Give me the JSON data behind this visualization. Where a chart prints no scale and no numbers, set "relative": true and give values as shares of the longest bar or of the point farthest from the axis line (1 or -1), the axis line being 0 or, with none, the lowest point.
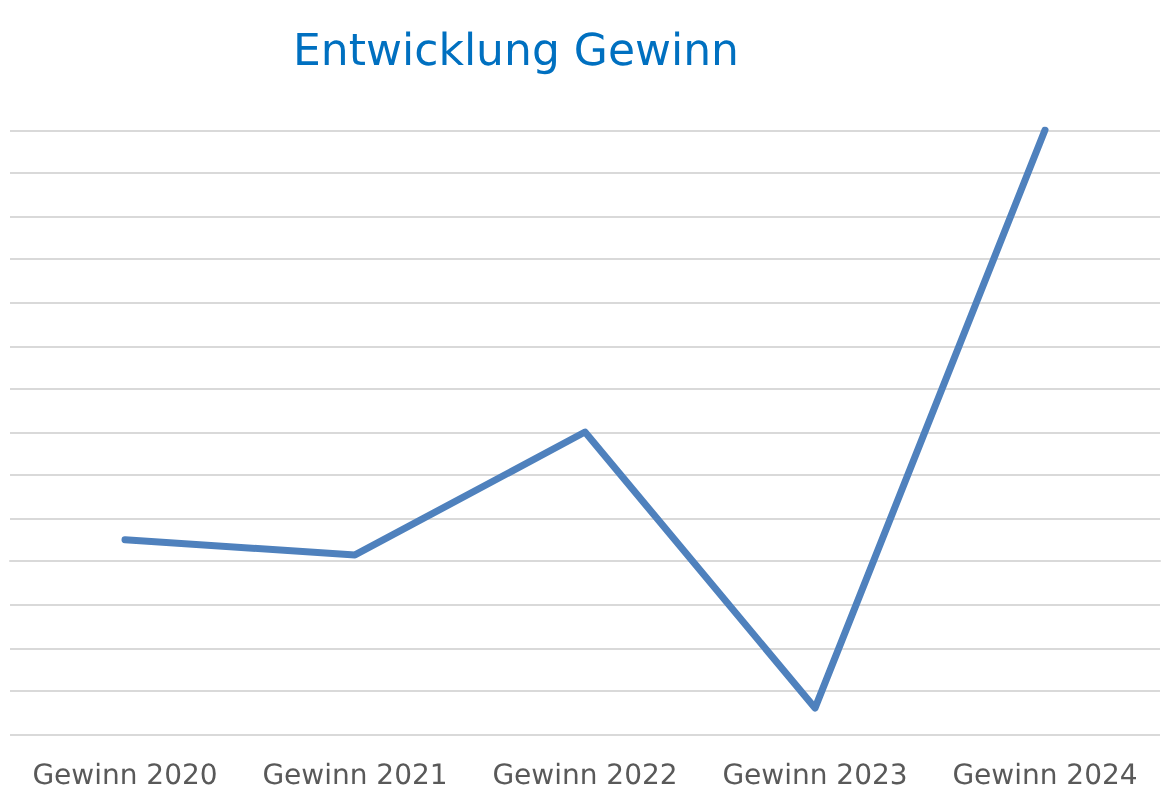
{
  "chart_data": {
    "type": "line",
    "title": "Entwicklung Gewinn",
    "relative": true,
    "grid": "y",
    "marker": "none",
    "line_style": "solid",
    "categories": [
      "Gewinn 2020",
      "Gewinn 2021",
      "Gewinn 2022",
      "Gewinn 2023",
      "Gewinn 2024"
    ],
    "series": [
      {
        "color": "#4f81bd",
        "values": [
          0.05,
          0.015,
          0.3,
          -0.34,
          1
        ]
      }
    ]
  }
}
